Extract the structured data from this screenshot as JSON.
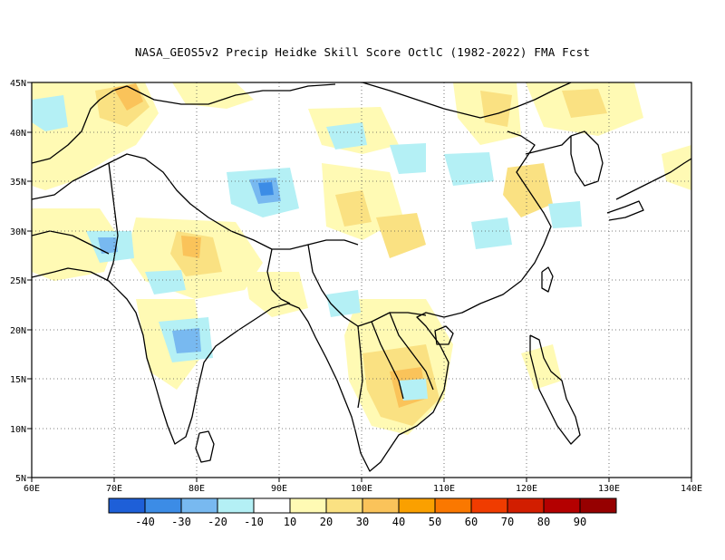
{
  "title": "NASA_GEOS5v2 Precip Heidke Skill Score OctlC (1982-2022) FMA Fcst",
  "map": {
    "lon_range": [
      60,
      140
    ],
    "lat_range": [
      5,
      45
    ],
    "lon_ticks": [
      "60E",
      "70E",
      "80E",
      "90E",
      "100E",
      "110E",
      "120E",
      "130E",
      "140E"
    ],
    "lat_ticks": [
      "5N",
      "10N",
      "15N",
      "20N",
      "25N",
      "30N",
      "35N",
      "40N",
      "45N"
    ],
    "grid": "dotted"
  },
  "colorbar": {
    "colors": [
      "#1e5fd8",
      "#3c8ce6",
      "#78b9f0",
      "#b4f0f5",
      "#ffffff",
      "#fffab4",
      "#fae182",
      "#fac35a",
      "#faa000",
      "#fa7800",
      "#f03c00",
      "#d21e00",
      "#b40000",
      "#960000"
    ],
    "labels": [
      "-40",
      "-30",
      "-20",
      "-10",
      "10",
      "20",
      "30",
      "40",
      "50",
      "60",
      "70",
      "80",
      "90"
    ]
  },
  "fields": {
    "positive_light": "#fffab4",
    "positive_mid": "#fae182",
    "positive_strong": "#fac35a",
    "positive_peak": "#faa000",
    "negative_light": "#b4f0f5",
    "negative_mid": "#78b9f0",
    "negative_strong": "#3c8ce6"
  }
}
